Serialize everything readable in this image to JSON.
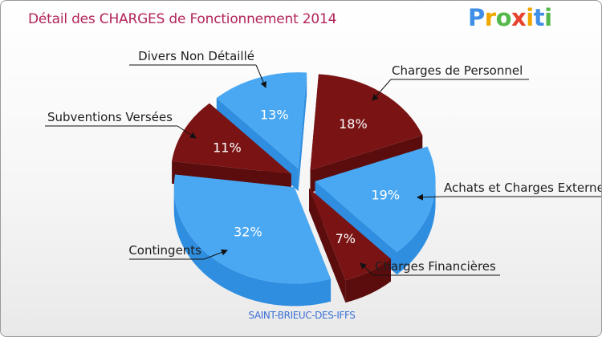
{
  "title": "Détail des CHARGES de Fonctionnement 2014",
  "brand": {
    "letters": [
      "P",
      "r",
      "o",
      "x",
      "i",
      "t",
      "i"
    ],
    "colors": [
      "#3f8fe6",
      "#f0a800",
      "#54b84a",
      "#e6432f",
      "#f0a800",
      "#3f8fe6",
      "#54b84a"
    ]
  },
  "subtitle": "SAINT-BRIEUC-DES-IFFS",
  "colors": {
    "blue": "#4aa8f3",
    "blue_side": "#2f8ee0",
    "red": "#7a1414",
    "red_side": "#5b0d0d",
    "title": "#b2245a",
    "subtitle": "#3b6fd6"
  },
  "chart_data": {
    "type": "pie",
    "title": "Détail des CHARGES de Fonctionnement 2014",
    "subtitle": "SAINT-BRIEUC-DES-IFFS",
    "unit": "%",
    "slices": [
      {
        "label": "Charges de Personnel",
        "value": 18,
        "pct_label": "18%",
        "color": "red"
      },
      {
        "label": "Achats et Charges Externes",
        "value": 19,
        "pct_label": "19%",
        "color": "blue"
      },
      {
        "label": "Charges Financières",
        "value": 7,
        "pct_label": "7%",
        "color": "red"
      },
      {
        "label": "Contingents",
        "value": 32,
        "pct_label": "32%",
        "color": "blue"
      },
      {
        "label": "Subventions Versées",
        "value": 11,
        "pct_label": "11%",
        "color": "red"
      },
      {
        "label": "Divers Non Détaillé",
        "value": 13,
        "pct_label": "13%",
        "color": "blue"
      }
    ]
  }
}
